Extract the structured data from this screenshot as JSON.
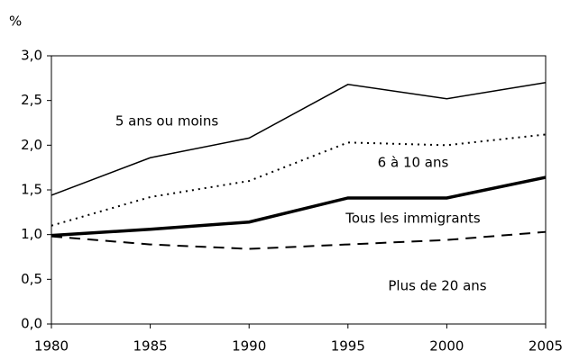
{
  "chart_data": {
    "type": "line",
    "y_label": "%",
    "x": [
      1980,
      1985,
      1990,
      1995,
      2000,
      2005
    ],
    "xlim": [
      1980,
      2005
    ],
    "xticks": [
      1980,
      1985,
      1990,
      1995,
      2000,
      2005
    ],
    "ylim": [
      0,
      3
    ],
    "yticks": [
      {
        "value": 0,
        "label": "0,0"
      },
      {
        "value": 0.5,
        "label": "0,5"
      },
      {
        "value": 1,
        "label": "1,0"
      },
      {
        "value": 1.5,
        "label": "1,5"
      },
      {
        "value": 2,
        "label": "2,0"
      },
      {
        "value": 2.5,
        "label": "2,5"
      },
      {
        "value": 3,
        "label": "3,0"
      }
    ],
    "grid": false,
    "series": [
      {
        "name": "5 ans ou moins",
        "color": "#000000",
        "line_style": "solid",
        "values": [
          1.44,
          1.86,
          2.08,
          2.68,
          2.52,
          2.7
        ]
      },
      {
        "name": "6 à 10 ans",
        "color": "#000000",
        "line_style": "dotted",
        "values": [
          1.1,
          1.42,
          1.6,
          2.03,
          2.0,
          2.12
        ]
      },
      {
        "name": "Tous les immigrants",
        "color": "#000000",
        "line_style": "thick",
        "values": [
          0.99,
          1.06,
          1.14,
          1.41,
          1.41,
          1.64
        ]
      },
      {
        "name": "Plus de 20 ans",
        "color": "#000000",
        "line_style": "dashed",
        "values": [
          0.98,
          0.89,
          0.84,
          0.89,
          0.94,
          1.03
        ]
      }
    ]
  }
}
